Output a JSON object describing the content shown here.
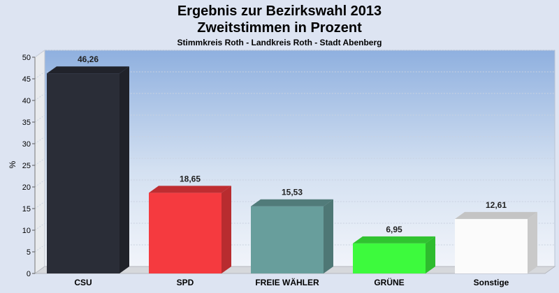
{
  "header": {
    "title": "Ergebnis zur Bezirkswahl 2013",
    "subtitle": "Zweitstimmen in Prozent",
    "caption": "Stimmkreis Roth - Landkreis Roth - Stadt Abenberg"
  },
  "chart_data": {
    "type": "bar",
    "title": "Ergebnis zur Bezirkswahl 2013",
    "subtitle": "Zweitstimmen in Prozent",
    "xlabel": "",
    "ylabel": "%",
    "ylim": [
      0,
      50
    ],
    "yticks": [
      0,
      5,
      10,
      15,
      20,
      25,
      30,
      35,
      40,
      45,
      50
    ],
    "categories": [
      "CSU",
      "SPD",
      "FREIE WÄHLER",
      "GRÜNE",
      "Sonstige"
    ],
    "values": [
      46.26,
      18.65,
      15.53,
      6.95,
      12.61
    ],
    "value_labels": [
      "46,26",
      "18,65",
      "15,53",
      "6,95",
      "12,61"
    ],
    "colors": [
      "#2a2d37",
      "#f53a3f",
      "#689e9c",
      "#3dfa3d",
      "#fbfbfb"
    ],
    "grid": true,
    "legend": "none"
  }
}
